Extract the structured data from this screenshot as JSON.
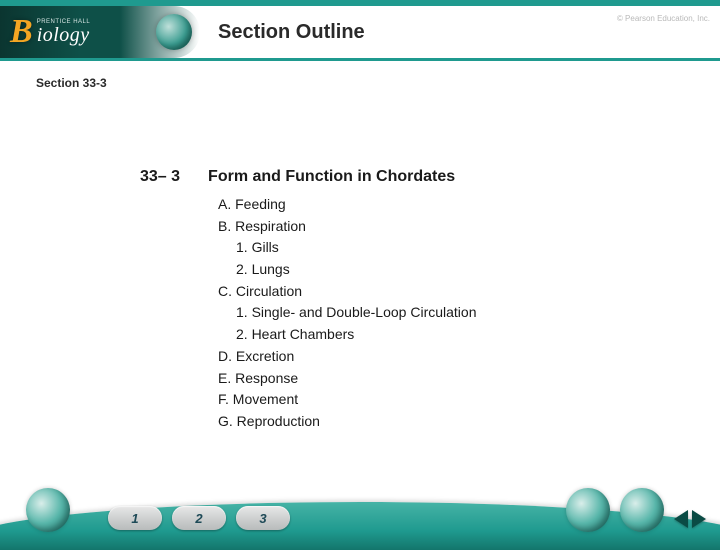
{
  "colors": {
    "teal": "#1f9a8f",
    "teal_dark": "#0e5048",
    "accent_gold": "#f4a623",
    "text": "#1a1a1a",
    "copyright": "#b9b9b9"
  },
  "logo": {
    "prentice_hall": "PRENTICE HALL",
    "biology_initial": "B",
    "biology_rest": "iology"
  },
  "header": {
    "title": "Section Outline",
    "copyright": "© Pearson Education, Inc."
  },
  "section_ref": "Section 33-3",
  "chapter": {
    "number": "33– 3",
    "title": "Form and Function in Chordates"
  },
  "outline": [
    {
      "level": 1,
      "text": "A. Feeding"
    },
    {
      "level": 1,
      "text": "B. Respiration"
    },
    {
      "level": 2,
      "text": "1. Gills"
    },
    {
      "level": 2,
      "text": "2. Lungs"
    },
    {
      "level": 1,
      "text": "C. Circulation"
    },
    {
      "level": 2,
      "text": "1. Single- and Double-Loop Circulation"
    },
    {
      "level": 2,
      "text": "2. Heart Chambers"
    },
    {
      "level": 1,
      "text": "D. Excretion"
    },
    {
      "level": 1,
      "text": "E. Response"
    },
    {
      "level": 1,
      "text": "F. Movement"
    },
    {
      "level": 1,
      "text": "G. Reproduction"
    }
  ],
  "nav": {
    "buttons": [
      "1",
      "2",
      "3"
    ]
  }
}
